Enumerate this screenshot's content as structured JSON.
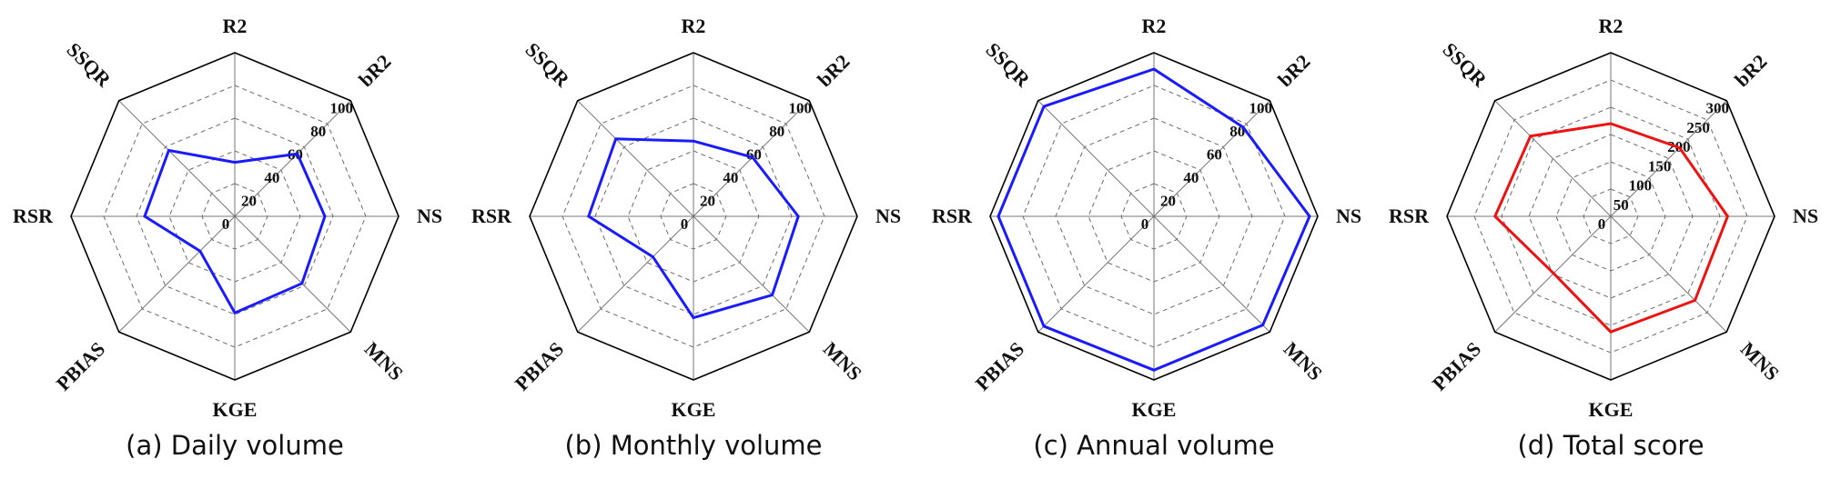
{
  "chart_data": [
    {
      "type": "radar",
      "title": "",
      "caption": "(a) Daily volume",
      "axes": [
        "R2",
        "bR2",
        "NS",
        "MNS",
        "KGE",
        "PBIAS",
        "RSR",
        "SSQR"
      ],
      "ticks": [
        "0",
        "20",
        "40",
        "60",
        "80",
        "100"
      ],
      "rlim": [
        0,
        100
      ],
      "series": [
        {
          "name": "Daily volume",
          "color": "#1a1aff",
          "values": [
            33,
            54,
            55,
            58,
            59,
            30,
            55,
            57
          ]
        }
      ]
    },
    {
      "type": "radar",
      "title": "",
      "caption": "(b) Monthly volume",
      "axes": [
        "R2",
        "bR2",
        "NS",
        "MNS",
        "KGE",
        "PBIAS",
        "RSR",
        "SSQR"
      ],
      "ticks": [
        "0",
        "20",
        "40",
        "60",
        "80",
        "100"
      ],
      "rlim": [
        0,
        100
      ],
      "series": [
        {
          "name": "Monthly volume",
          "color": "#1a1aff",
          "values": [
            46,
            51,
            64,
            68,
            62,
            35,
            64,
            67
          ]
        }
      ]
    },
    {
      "type": "radar",
      "title": "",
      "caption": "(c) Annual volume",
      "axes": [
        "R2",
        "bR2",
        "NS",
        "MNS",
        "KGE",
        "PBIAS",
        "RSR",
        "SSQR"
      ],
      "ticks": [
        "0",
        "20",
        "40",
        "60",
        "80",
        "100"
      ],
      "rlim": [
        0,
        100
      ],
      "series": [
        {
          "name": "Annual volume",
          "color": "#1a1aff",
          "values": [
            90,
            77,
            95,
            94,
            94,
            95,
            95,
            95
          ]
        }
      ]
    },
    {
      "type": "radar",
      "title": "",
      "caption": "(d) Total score",
      "axes": [
        "R2",
        "bR2",
        "NS",
        "MNS",
        "KGE",
        "PBIAS",
        "RSR",
        "SSQR"
      ],
      "ticks": [
        "0",
        "50",
        "100",
        "150",
        "200",
        "250",
        "300"
      ],
      "rlim": [
        0,
        300
      ],
      "series": [
        {
          "name": "Total score",
          "color": "#ee1111",
          "values": [
            170,
            178,
            214,
            218,
            212,
            148,
            212,
            208
          ]
        }
      ]
    }
  ]
}
